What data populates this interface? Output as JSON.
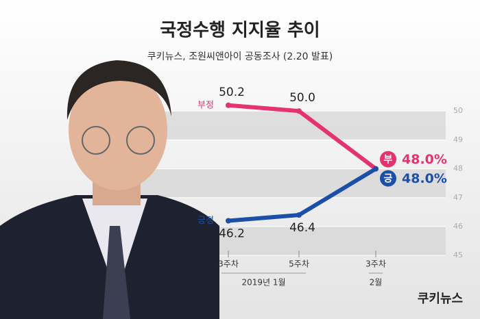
{
  "chart_data": {
    "type": "line",
    "title": "국정수행 지지율 추이",
    "subtitle": "쿠키뉴스, 조원씨앤아이 공동조사 (2.20 발표)",
    "categories": [
      "3주차",
      "5주차",
      "3주차"
    ],
    "category_groups": [
      {
        "label": "2019년 1월",
        "span": [
          0,
          1
        ]
      },
      {
        "label": "2월",
        "span": [
          2,
          2
        ]
      }
    ],
    "series": [
      {
        "name": "부정",
        "marker_label": "부",
        "color": "#e5336e",
        "values": [
          50.2,
          50.0,
          48.0
        ],
        "value_labels": [
          "50.2",
          "50.0",
          "48.0%"
        ]
      },
      {
        "name": "긍정",
        "marker_label": "긍",
        "color": "#1c4fa8",
        "values": [
          46.2,
          46.4,
          48.0
        ],
        "value_labels": [
          "46.2",
          "46.4",
          "48.0%"
        ]
      }
    ],
    "ylim": [
      44.6,
      51.0
    ],
    "yticks": [
      45,
      46,
      47,
      48,
      49,
      50
    ],
    "bands": true,
    "logo": "쿠키뉴스"
  }
}
